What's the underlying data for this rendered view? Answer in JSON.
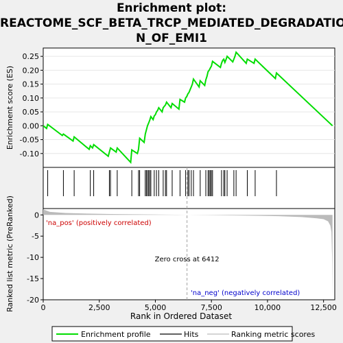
{
  "chart_data": {
    "type": "line",
    "title_lines": [
      "Enrichment plot:",
      "REACTOME_SCF_BETA_TRCP_MEDIATED_DEGRADATIO",
      "N_OF_EMI1"
    ],
    "xlabel": "Rank in Ordered Dataset",
    "ylabel_top": "Enrichment score (ES)",
    "ylabel_bottom": "Ranked list metric (PreRanked)",
    "xlim": [
      0,
      13000
    ],
    "es_ylim": [
      -0.15,
      0.28
    ],
    "metric_ylim": [
      -20,
      1.5
    ],
    "x_ticks": [
      0,
      2500,
      5000,
      7500,
      10000,
      12500
    ],
    "x_tick_labels": [
      "0",
      "2,500",
      "5,000",
      "7,500",
      "10,000",
      "12,500"
    ],
    "es_ticks": [
      -0.1,
      -0.05,
      0.0,
      0.05,
      0.1,
      0.15,
      0.2,
      0.25
    ],
    "es_tick_labels": [
      "-0.10",
      "-0.05",
      "0.00",
      "0.05",
      "0.10",
      "0.15",
      "0.20",
      "0.25"
    ],
    "metric_ticks": [
      0,
      -5,
      -10,
      -15,
      -20
    ],
    "metric_tick_labels": [
      "0",
      "-5",
      "-10",
      "-15",
      "-20"
    ],
    "hits": [
      200,
      900,
      1380,
      2100,
      2250,
      2950,
      3000,
      3300,
      3950,
      4250,
      4300,
      4550,
      4600,
      4650,
      4700,
      4750,
      4800,
      4950,
      5050,
      5150,
      5350,
      5450,
      5500,
      5750,
      6100,
      6350,
      6450,
      6500,
      6600,
      6700,
      7000,
      7250,
      7350,
      7400,
      7450,
      7500,
      7550,
      7950,
      8050,
      8100,
      8200,
      8500,
      8600,
      9100,
      9450,
      10400
    ],
    "es_curve": {
      "x": [
        0,
        150,
        200,
        850,
        900,
        1330,
        1380,
        2050,
        2100,
        2200,
        2250,
        2900,
        2950,
        3000,
        3250,
        3300,
        3900,
        3950,
        4200,
        4250,
        4300,
        4500,
        4550,
        4600,
        4650,
        4700,
        4750,
        4800,
        4900,
        4950,
        5000,
        5050,
        5100,
        5150,
        5300,
        5350,
        5400,
        5450,
        5500,
        5700,
        5750,
        6050,
        6100,
        6300,
        6350,
        6400,
        6450,
        6500,
        6550,
        6600,
        6650,
        6700,
        6950,
        7000,
        7200,
        7250,
        7300,
        7350,
        7400,
        7450,
        7500,
        7550,
        7900,
        7950,
        8000,
        8050,
        8100,
        8150,
        8200,
        8450,
        8500,
        8550,
        8600,
        9050,
        9100,
        9400,
        9450,
        10350,
        10400,
        12900
      ],
      "y": [
        0.0,
        -0.01,
        0.005,
        -0.035,
        -0.03,
        -0.055,
        -0.04,
        -0.085,
        -0.072,
        -0.08,
        -0.068,
        -0.11,
        -0.095,
        -0.08,
        -0.095,
        -0.08,
        -0.132,
        -0.087,
        -0.1,
        -0.085,
        -0.045,
        -0.06,
        -0.03,
        -0.015,
        0.0,
        0.01,
        0.02,
        0.033,
        0.022,
        0.035,
        0.04,
        0.05,
        0.055,
        0.065,
        0.05,
        0.065,
        0.07,
        0.075,
        0.085,
        0.065,
        0.08,
        0.06,
        0.095,
        0.085,
        0.1,
        0.105,
        0.115,
        0.12,
        0.13,
        0.14,
        0.15,
        0.168,
        0.14,
        0.162,
        0.145,
        0.165,
        0.178,
        0.195,
        0.2,
        0.208,
        0.215,
        0.232,
        0.21,
        0.225,
        0.235,
        0.24,
        0.228,
        0.238,
        0.25,
        0.23,
        0.24,
        0.25,
        0.265,
        0.225,
        0.24,
        0.225,
        0.24,
        0.17,
        0.19,
        0.0
      ]
    },
    "metric_curve": {
      "x": [
        0,
        300,
        1000,
        2000,
        3000,
        4500,
        6000,
        6412,
        7500,
        9000,
        10500,
        11500,
        12200,
        12500,
        12700,
        12800,
        12850,
        12880,
        12900
      ],
      "y": [
        1.3,
        0.7,
        0.45,
        0.3,
        0.2,
        0.12,
        0.05,
        0.0,
        -0.05,
        -0.15,
        -0.3,
        -0.5,
        -0.8,
        -1.0,
        -1.5,
        -2.5,
        -4.0,
        -10.0,
        -19.5
      ]
    },
    "zero_cross": 6412,
    "zero_cross_label": "Zero cross at 6412",
    "pos_label": "'na_pos' (positively correlated)",
    "neg_label": "'na_neg' (negatively correlated)",
    "legend": [
      "Enrichment profile",
      "Hits",
      "Ranking metric scores"
    ],
    "colors": {
      "es_line": "#00dd00",
      "hits": "#000000",
      "metric_fill": "#bbbbbb",
      "zero_line": "#a0a0a0",
      "pos_text": "#cc0000",
      "neg_text": "#0000cc",
      "frame": "#000000"
    }
  }
}
